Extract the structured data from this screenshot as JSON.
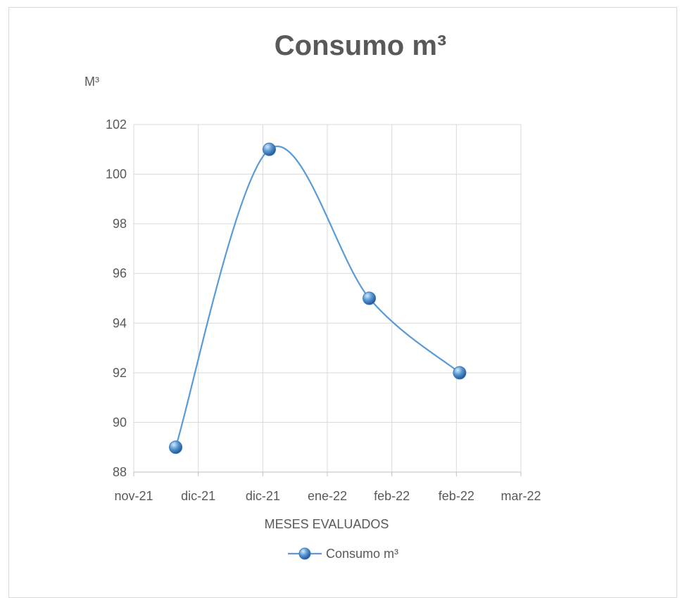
{
  "chart_data": {
    "type": "line",
    "title": "Consumo m³",
    "ylabel": "M³",
    "xlabel": "MESES EVALUADOS",
    "x_tick_labels": [
      "nov-21",
      "dic-21",
      "dic-21",
      "ene-22",
      "feb-22",
      "feb-22",
      "mar-22"
    ],
    "y_ticks": [
      88,
      90,
      92,
      94,
      96,
      98,
      100,
      102
    ],
    "ylim": [
      88,
      102
    ],
    "xlim": [
      0,
      6
    ],
    "smooth": true,
    "grid": true,
    "legend_position": "bottom",
    "series": [
      {
        "name": "Consumo m³",
        "color": "#5b9bd5",
        "x": [
          0.65,
          2.1,
          3.65,
          5.05
        ],
        "values": [
          89,
          101,
          95,
          92
        ]
      }
    ]
  }
}
